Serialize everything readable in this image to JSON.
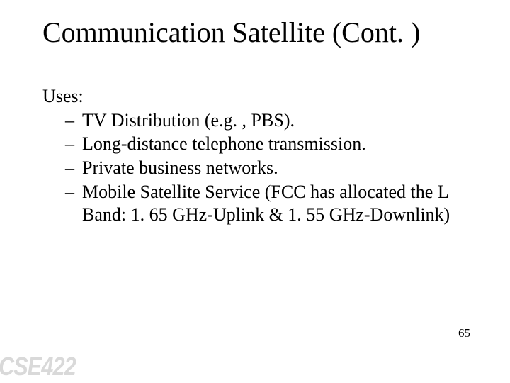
{
  "title": "Communication Satellite (Cont. )",
  "lead": "Uses:",
  "items": [
    "TV Distribution (e.g. , PBS).",
    "Long-distance telephone transmission.",
    "Private business networks.",
    "Mobile Satellite Service (FCC has allocated the L Band: 1. 65 GHz-Uplink & 1. 55 GHz-Downlink)"
  ],
  "page_number": "65",
  "watermark": "CSE422",
  "colors": {
    "background": "#ffffff",
    "text": "#000000",
    "watermark": "#d9d9d9"
  },
  "fonts": {
    "title_size_pt": 40,
    "body_size_pt": 26,
    "pagenum_size_pt": 17,
    "family": "Times New Roman"
  }
}
